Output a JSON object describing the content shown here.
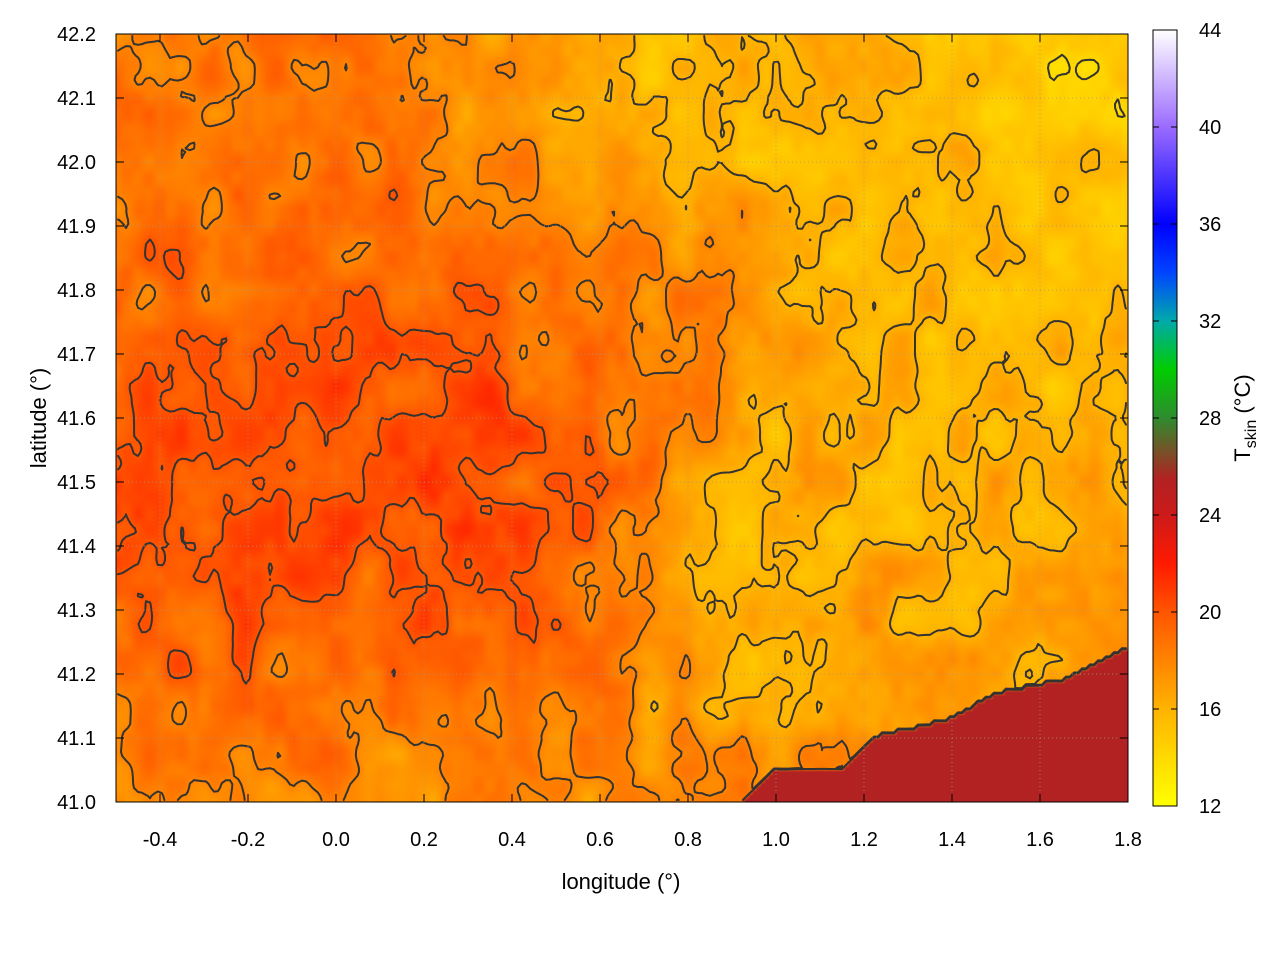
{
  "chart_data": {
    "type": "heatmap",
    "title": "",
    "xlabel": "longitude (°)",
    "ylabel": "latitude (°)",
    "colorbar_label_main": "T",
    "colorbar_label_sub": "skin",
    "colorbar_label_unit": " (°C)",
    "xlim": [
      -0.5,
      1.8
    ],
    "ylim": [
      41.0,
      42.2
    ],
    "x_ticks": [
      -0.4,
      -0.2,
      0.0,
      0.2,
      0.4,
      0.6,
      0.8,
      1.0,
      1.2,
      1.4,
      1.6,
      1.8
    ],
    "x_tick_labels": [
      "-0.4",
      "-0.2",
      "0.0",
      "0.2",
      "0.4",
      "0.6",
      "0.8",
      "1.0",
      "1.2",
      "1.4",
      "1.6",
      "1.8"
    ],
    "y_ticks": [
      41.0,
      41.1,
      41.2,
      41.3,
      41.4,
      41.5,
      41.6,
      41.7,
      41.8,
      41.9,
      42.0,
      42.1,
      42.2
    ],
    "y_tick_labels": [
      "41.0",
      "41.1",
      "41.2",
      "41.3",
      "41.4",
      "41.5",
      "41.6",
      "41.7",
      "41.8",
      "41.9",
      "42.0",
      "42.1",
      "42.2"
    ],
    "colorbar_range": [
      12,
      44
    ],
    "colorbar_ticks": [
      12,
      16,
      20,
      24,
      28,
      32,
      36,
      40,
      44
    ],
    "colorbar_tick_labels": [
      "12",
      "16",
      "20",
      "24",
      "28",
      "32",
      "36",
      "40",
      "44"
    ],
    "colormap": [
      {
        "value": 12,
        "color": "#ffff00"
      },
      {
        "value": 16,
        "color": "#ffb300"
      },
      {
        "value": 20,
        "color": "#ff5500"
      },
      {
        "value": 22,
        "color": "#ff1a00"
      },
      {
        "value": 24,
        "color": "#cc1a1a"
      },
      {
        "value": 25.5,
        "color": "#b22222"
      },
      {
        "value": 28,
        "color": "#2e8b2e"
      },
      {
        "value": 30,
        "color": "#00cc00"
      },
      {
        "value": 32,
        "color": "#00aaaa"
      },
      {
        "value": 34,
        "color": "#0044ff"
      },
      {
        "value": 36,
        "color": "#0000ff"
      },
      {
        "value": 40,
        "color": "#9b6bff"
      },
      {
        "value": 44,
        "color": "#ffffff"
      }
    ],
    "field_anchors": [
      {
        "lon": -0.45,
        "lat": 41.45,
        "t": 21.5,
        "r": 0.2
      },
      {
        "lon": -0.2,
        "lat": 41.35,
        "t": 21.0,
        "r": 0.22
      },
      {
        "lon": 0.05,
        "lat": 41.5,
        "t": 20.5,
        "r": 0.25
      },
      {
        "lon": 0.2,
        "lat": 41.55,
        "t": 21.2,
        "r": 0.18
      },
      {
        "lon": 0.3,
        "lat": 41.4,
        "t": 21.5,
        "r": 0.15
      },
      {
        "lon": 0.0,
        "lat": 41.85,
        "t": 20.0,
        "r": 0.25
      },
      {
        "lon": -0.35,
        "lat": 42.1,
        "t": 19.0,
        "r": 0.25
      },
      {
        "lon": 0.45,
        "lat": 41.75,
        "t": 20.5,
        "r": 0.2
      },
      {
        "lon": 0.7,
        "lat": 41.75,
        "t": 19.5,
        "r": 0.18
      },
      {
        "lon": 0.5,
        "lat": 41.25,
        "t": 19.5,
        "r": 0.15
      },
      {
        "lon": 0.95,
        "lat": 41.3,
        "t": 14.0,
        "r": 0.14
      },
      {
        "lon": 1.4,
        "lat": 41.65,
        "t": 15.0,
        "r": 0.35
      },
      {
        "lon": 1.6,
        "lat": 42.0,
        "t": 15.5,
        "r": 0.3
      },
      {
        "lon": 1.7,
        "lat": 42.18,
        "t": 12.5,
        "r": 0.12
      },
      {
        "lon": 0.8,
        "lat": 42.08,
        "t": 14.0,
        "r": 0.15
      },
      {
        "lon": 0.5,
        "lat": 42.0,
        "t": 16.0,
        "r": 0.18
      },
      {
        "lon": 0.25,
        "lat": 41.05,
        "t": 17.0,
        "r": 0.2
      },
      {
        "lon": -0.3,
        "lat": 41.05,
        "t": 17.5,
        "r": 0.2
      },
      {
        "lon": 1.25,
        "lat": 41.25,
        "t": 17.0,
        "r": 0.2
      },
      {
        "lon": 1.05,
        "lat": 41.05,
        "t": 19.5,
        "r": 0.15
      }
    ],
    "field_base": 17.0,
    "sea_value": 25.5,
    "sea_boundary": [
      {
        "lon": 0.92,
        "lat": 41.0
      },
      {
        "lon": 1.0,
        "lat": 41.05
      },
      {
        "lon": 1.15,
        "lat": 41.05
      },
      {
        "lon": 1.22,
        "lat": 41.1
      },
      {
        "lon": 1.4,
        "lat": 41.13
      },
      {
        "lon": 1.5,
        "lat": 41.17
      },
      {
        "lon": 1.65,
        "lat": 41.19
      },
      {
        "lon": 1.8,
        "lat": 41.24
      }
    ],
    "contour_levels": [
      14,
      16,
      18,
      20
    ]
  }
}
